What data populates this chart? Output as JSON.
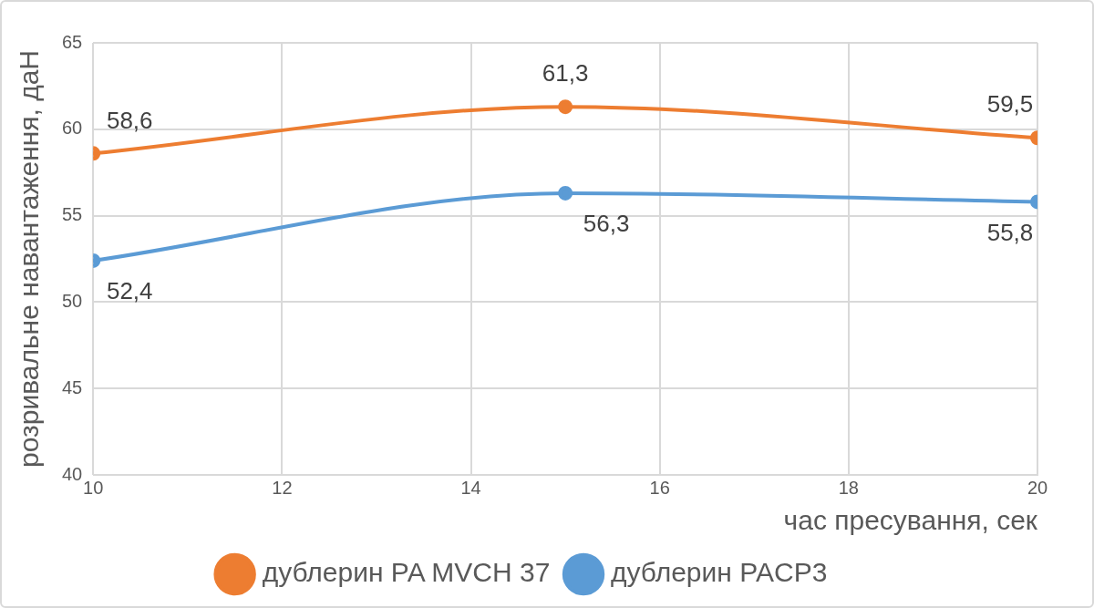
{
  "chart_data": {
    "type": "line",
    "xlabel": "час пресування, сек",
    "ylabel": "розривальне навантаження, даН",
    "x": [
      10,
      15,
      20
    ],
    "series": [
      {
        "name": "дублерин PA MVCH 37",
        "color": "#ed7d31",
        "values": [
          58.6,
          61.3,
          59.5
        ],
        "value_labels": [
          "58,6",
          "61,3",
          "59,5"
        ]
      },
      {
        "name": "дублерин PACP3",
        "color": "#5b9bd5",
        "values": [
          52.4,
          56.3,
          55.8
        ],
        "value_labels": [
          "52,4",
          "56,3",
          "55,8"
        ]
      }
    ],
    "xlim": [
      10,
      20
    ],
    "xticks": [
      10,
      12,
      14,
      16,
      18,
      20
    ],
    "ylim": [
      40,
      65
    ],
    "yticks": [
      40,
      45,
      50,
      55,
      60,
      65
    ],
    "grid": true,
    "legend": "bottom",
    "marker": "circle",
    "line_style": "solid"
  }
}
